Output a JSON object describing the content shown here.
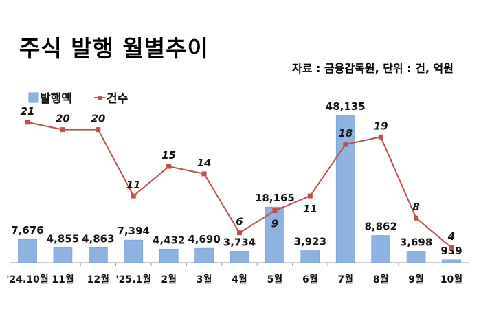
{
  "chart_data": {
    "type": "bar+line",
    "title": "주식 발행 월별추이",
    "source_note": "자료 : 금융감독원, 단위 : 건, 억원",
    "categories": [
      "'24.10월",
      "11월",
      "12월",
      "'25.1월",
      "2월",
      "3월",
      "4월",
      "5월",
      "6월",
      "7월",
      "8월",
      "9월",
      "10월"
    ],
    "series": [
      {
        "name": "발행액",
        "type": "bar",
        "color": "#8db3e2",
        "labels": [
          "7,676",
          "4,855",
          "4,863",
          "7,394",
          "4,432",
          "4,690",
          "3,734",
          "18,165",
          "3,923",
          "48,135",
          "8,862",
          "3,698",
          "939"
        ],
        "values": [
          7676,
          4855,
          4863,
          7394,
          4432,
          4690,
          3734,
          18165,
          3923,
          48135,
          8862,
          3698,
          939
        ]
      },
      {
        "name": "건수",
        "type": "line",
        "color": "#c0504d",
        "labels": [
          "21",
          "20",
          "20",
          "11",
          "15",
          "14",
          "6",
          "9",
          "11",
          "18",
          "19",
          "8",
          "4"
        ],
        "values": [
          21,
          20,
          20,
          11,
          15,
          14,
          6,
          9,
          11,
          18,
          19,
          8,
          4
        ]
      }
    ],
    "legend": "top-left",
    "grid": false
  }
}
